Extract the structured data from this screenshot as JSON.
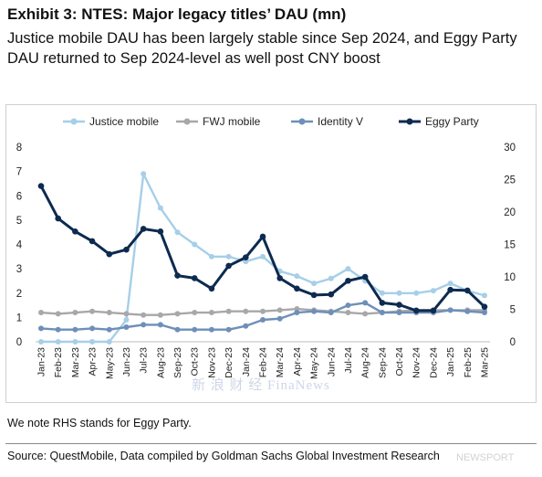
{
  "header": {
    "title": "Exhibit 3: NTES: Major legacy titles’ DAU (mn)",
    "subtitle": "Justice mobile DAU has been largely stable since Sep 2024, and Eggy Party DAU returned to Sep 2024-level as well post CNY boost"
  },
  "footer": {
    "note": "We note RHS stands for Eggy Party.",
    "source": "Source: QuestMobile, Data compiled by Goldman Sachs Global Investment Research"
  },
  "watermarks": {
    "center": "新 浪 财 经 FinaNews",
    "corner": "NEWSPORT"
  },
  "chart_data": {
    "type": "line",
    "categories": [
      "Jan-23",
      "Feb-23",
      "Mar-23",
      "Apr-23",
      "May-23",
      "Jun-23",
      "Jul-23",
      "Aug-23",
      "Sep-23",
      "Oct-23",
      "Nov-23",
      "Dec-23",
      "Jan-24",
      "Feb-24",
      "Mar-24",
      "Apr-24",
      "May-24",
      "Jun-24",
      "Jul-24",
      "Aug-24",
      "Sep-24",
      "Oct-24",
      "Nov-24",
      "Dec-24",
      "Jan-25",
      "Feb-25",
      "Mar-25"
    ],
    "x_tick_labels": [
      "Jan-23",
      "Feb-23",
      "Mar-23",
      "Apr-23",
      "May-23",
      "Jun-23",
      "Jul-23",
      "Aug-23",
      "Sep-23",
      "Oct-23",
      "Nov-23",
      "Dec-23",
      "Jan-24",
      "Feb-24",
      "Mar-24",
      "Apr-24",
      "May-24",
      "Jun-24",
      "Jul-24",
      "Aug-24",
      "Sep-24",
      "Oct-24",
      "Nov-24",
      "Dec-24",
      "Jan-25",
      "Feb-25",
      "Mar-25"
    ],
    "left_axis": {
      "ylim": [
        0,
        8
      ],
      "ticks": [
        "0",
        "1",
        "2",
        "3",
        "4",
        "5",
        "6",
        "7",
        "8"
      ]
    },
    "right_axis": {
      "ylim": [
        0,
        30
      ],
      "ticks": [
        "0",
        "5",
        "10",
        "15",
        "20",
        "25",
        "30"
      ]
    },
    "legend_position": "top",
    "grid": false,
    "series": [
      {
        "name": "Justice mobile",
        "axis": "left",
        "color": "#a6cfe8",
        "marker": "circle",
        "values": [
          0,
          0,
          0,
          0,
          0,
          0.9,
          6.9,
          5.5,
          4.5,
          4.0,
          3.5,
          3.5,
          3.3,
          3.5,
          2.9,
          2.7,
          2.4,
          2.6,
          3.0,
          2.5,
          2.0,
          2.0,
          2.0,
          2.1,
          2.4,
          2.1,
          1.9
        ]
      },
      {
        "name": "FWJ mobile",
        "axis": "left",
        "color": "#a8a8a8",
        "marker": "circle",
        "values": [
          1.2,
          1.15,
          1.2,
          1.25,
          1.2,
          1.15,
          1.1,
          1.1,
          1.15,
          1.2,
          1.2,
          1.25,
          1.25,
          1.25,
          1.3,
          1.35,
          1.3,
          1.25,
          1.2,
          1.15,
          1.2,
          1.25,
          1.3,
          1.3,
          1.3,
          1.3,
          1.3
        ]
      },
      {
        "name": "Identity V",
        "axis": "left",
        "color": "#6e8fb8",
        "marker": "circle",
        "values": [
          0.55,
          0.5,
          0.5,
          0.55,
          0.5,
          0.6,
          0.7,
          0.7,
          0.5,
          0.5,
          0.5,
          0.5,
          0.65,
          0.9,
          0.95,
          1.2,
          1.25,
          1.2,
          1.5,
          1.6,
          1.2,
          1.2,
          1.2,
          1.2,
          1.3,
          1.25,
          1.2
        ]
      },
      {
        "name": "Eggy Party",
        "axis": "right",
        "color": "#0d2a4f",
        "marker": "circle",
        "values": [
          24,
          19,
          17,
          15.5,
          13.5,
          14.2,
          17.4,
          17,
          10.2,
          9.8,
          8.2,
          11.7,
          13,
          16.2,
          9.8,
          8.2,
          7.2,
          7.3,
          9.4,
          10,
          6,
          5.7,
          4.8,
          4.8,
          8,
          7.9,
          5.4
        ]
      }
    ]
  }
}
